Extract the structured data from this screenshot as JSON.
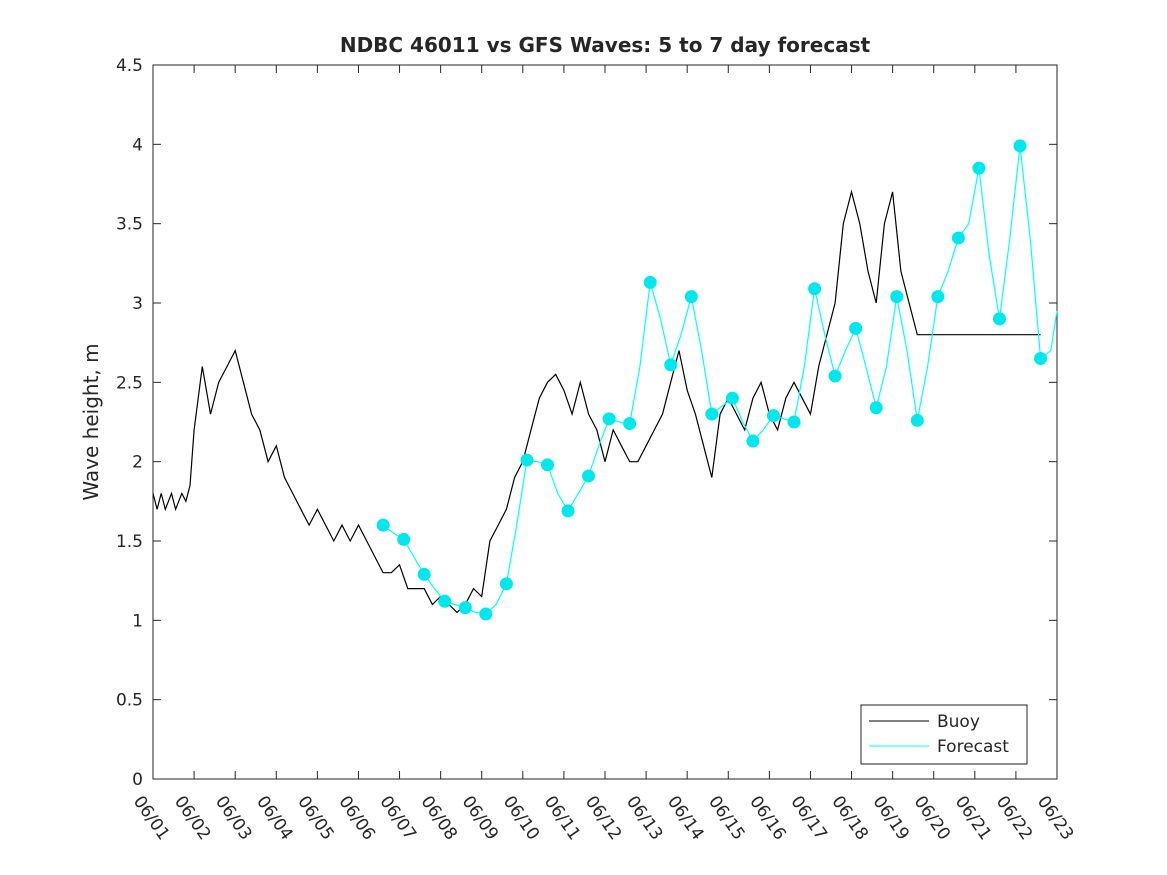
{
  "chart_data": {
    "type": "line",
    "title": "NDBC 46011 vs GFS Waves: 5 to 7 day forecast",
    "xlabel": "",
    "ylabel": "Wave height, m",
    "xlim": [
      0,
      22
    ],
    "ylim": [
      0,
      4.5
    ],
    "x_tick_labels": [
      "06/01",
      "06/02",
      "06/03",
      "06/04",
      "06/05",
      "06/06",
      "06/07",
      "06/08",
      "06/09",
      "06/10",
      "06/11",
      "06/12",
      "06/13",
      "06/14",
      "06/15",
      "06/16",
      "06/17",
      "06/18",
      "06/19",
      "06/20",
      "06/21",
      "06/22",
      "06/23"
    ],
    "y_ticks": [
      0,
      0.5,
      1,
      1.5,
      2,
      2.5,
      3,
      3.5,
      4,
      4.5
    ],
    "legend": {
      "position": "bottom-right",
      "entries": [
        "Buoy",
        "Forecast"
      ]
    },
    "colors": {
      "buoy": "#000000",
      "forecast": "#00ffff",
      "marker": "#00e8ee"
    },
    "series": [
      {
        "name": "Buoy",
        "x": [
          0,
          0.1,
          0.2,
          0.3,
          0.45,
          0.55,
          0.7,
          0.8,
          0.9,
          1.0,
          1.2,
          1.4,
          1.6,
          1.8,
          2.0,
          2.2,
          2.4,
          2.6,
          2.8,
          3.0,
          3.2,
          3.4,
          3.6,
          3.8,
          4.0,
          4.2,
          4.4,
          4.6,
          4.8,
          5.0,
          5.2,
          5.4,
          5.6,
          5.8,
          6.0,
          6.2,
          6.4,
          6.6,
          6.8,
          7.0,
          7.2,
          7.4,
          7.6,
          7.8,
          8.0,
          8.2,
          8.4,
          8.6,
          8.8,
          9.0,
          9.2,
          9.4,
          9.6,
          9.8,
          10.0,
          10.2,
          10.4,
          10.6,
          10.8,
          11.0,
          11.2,
          11.4,
          11.6,
          11.8,
          12.0,
          12.2,
          12.4,
          12.6,
          12.8,
          13.0,
          13.2,
          13.4,
          13.6,
          13.8,
          14.0,
          14.2,
          14.4,
          14.6,
          14.8,
          15.0,
          15.2,
          15.4,
          15.6,
          15.8,
          16.0,
          16.2,
          16.4,
          16.6,
          16.8,
          17.0,
          17.2,
          17.4,
          17.6,
          17.8,
          18.0,
          18.2,
          18.4,
          18.6,
          18.8,
          19.0,
          19.2,
          19.4,
          19.6,
          19.8,
          20.0,
          20.2,
          20.4,
          20.6,
          20.8,
          21.0,
          21.2,
          21.4,
          21.6
        ],
        "y": [
          1.8,
          1.7,
          1.8,
          1.7,
          1.8,
          1.7,
          1.8,
          1.75,
          1.85,
          2.2,
          2.6,
          2.3,
          2.5,
          2.6,
          2.7,
          2.5,
          2.3,
          2.2,
          2.0,
          2.1,
          1.9,
          1.8,
          1.7,
          1.6,
          1.7,
          1.6,
          1.5,
          1.6,
          1.5,
          1.6,
          1.5,
          1.4,
          1.3,
          1.3,
          1.35,
          1.2,
          1.2,
          1.2,
          1.1,
          1.15,
          1.1,
          1.05,
          1.1,
          1.2,
          1.15,
          1.5,
          1.6,
          1.7,
          1.9,
          2.0,
          2.2,
          2.4,
          2.5,
          2.55,
          2.45,
          2.3,
          2.5,
          2.3,
          2.2,
          2.0,
          2.2,
          2.1,
          2.0,
          2.0,
          2.1,
          2.2,
          2.3,
          2.5,
          2.7,
          2.45,
          2.3,
          2.1,
          1.9,
          2.3,
          2.4,
          2.3,
          2.2,
          2.4,
          2.5,
          2.3,
          2.2,
          2.4,
          2.5,
          2.4,
          2.3,
          2.6,
          2.8,
          3.0,
          3.5,
          3.7,
          3.5,
          3.2,
          3.0,
          3.5,
          3.7,
          3.2,
          3.0,
          2.8,
          2.8,
          2.8,
          2.8,
          2.8,
          2.8,
          2.8,
          2.8,
          2.8,
          2.8,
          2.8,
          2.8,
          2.8,
          2.8,
          2.8,
          2.8
        ]
      },
      {
        "name": "Forecast",
        "x": [
          5.6,
          5.85,
          6.1,
          6.35,
          6.6,
          6.85,
          7.1,
          7.35,
          7.6,
          7.85,
          8.1,
          8.35,
          8.6,
          8.85,
          9.1,
          9.35,
          9.6,
          9.85,
          10.1,
          10.35,
          10.6,
          10.85,
          11.1,
          11.35,
          11.6,
          11.85,
          12.1,
          12.35,
          12.6,
          12.85,
          13.1,
          13.35,
          13.6,
          13.85,
          14.1,
          14.35,
          14.6,
          14.85,
          15.1,
          15.35,
          15.6,
          15.85,
          16.1,
          16.35,
          16.6,
          16.85,
          17.1,
          17.35,
          17.6,
          17.85,
          18.1,
          18.35,
          18.6,
          18.85,
          19.1,
          19.35,
          19.6,
          19.85,
          20.1,
          20.35,
          20.6,
          20.85,
          21.1,
          21.35,
          21.6,
          21.85,
          22.0
        ],
        "y": [
          1.6,
          1.55,
          1.51,
          1.4,
          1.29,
          1.2,
          1.12,
          1.1,
          1.08,
          1.05,
          1.04,
          1.1,
          1.23,
          1.6,
          2.01,
          2.0,
          1.98,
          1.8,
          1.69,
          1.8,
          1.91,
          2.1,
          2.27,
          2.25,
          2.24,
          2.6,
          3.13,
          2.9,
          2.61,
          2.8,
          3.04,
          2.7,
          2.3,
          2.35,
          2.4,
          2.25,
          2.13,
          2.2,
          2.29,
          2.27,
          2.25,
          2.6,
          3.09,
          2.8,
          2.54,
          2.7,
          2.84,
          2.6,
          2.34,
          2.6,
          3.04,
          2.7,
          2.26,
          2.6,
          3.04,
          3.2,
          3.41,
          3.5,
          3.85,
          3.3,
          2.9,
          3.4,
          3.99,
          3.4,
          2.65,
          2.7,
          2.95
        ]
      }
    ],
    "forecast_markers": {
      "x": [
        5.6,
        6.1,
        6.6,
        7.1,
        7.6,
        8.1,
        8.6,
        9.1,
        9.6,
        10.1,
        10.6,
        11.1,
        11.6,
        12.1,
        12.6,
        13.1,
        13.6,
        14.1,
        14.6,
        15.1,
        15.6,
        16.1,
        16.6,
        17.1,
        17.6,
        18.1,
        18.6,
        19.1,
        19.6,
        20.1,
        20.6,
        21.1,
        21.6
      ],
      "y": [
        1.6,
        1.51,
        1.29,
        1.12,
        1.08,
        1.04,
        1.23,
        2.01,
        1.98,
        1.69,
        1.91,
        2.27,
        2.24,
        3.13,
        2.61,
        3.04,
        2.3,
        2.4,
        2.13,
        2.29,
        2.25,
        3.09,
        2.54,
        2.84,
        2.34,
        3.04,
        2.26,
        3.04,
        3.41,
        3.85,
        2.9,
        3.99,
        2.65
      ]
    }
  }
}
